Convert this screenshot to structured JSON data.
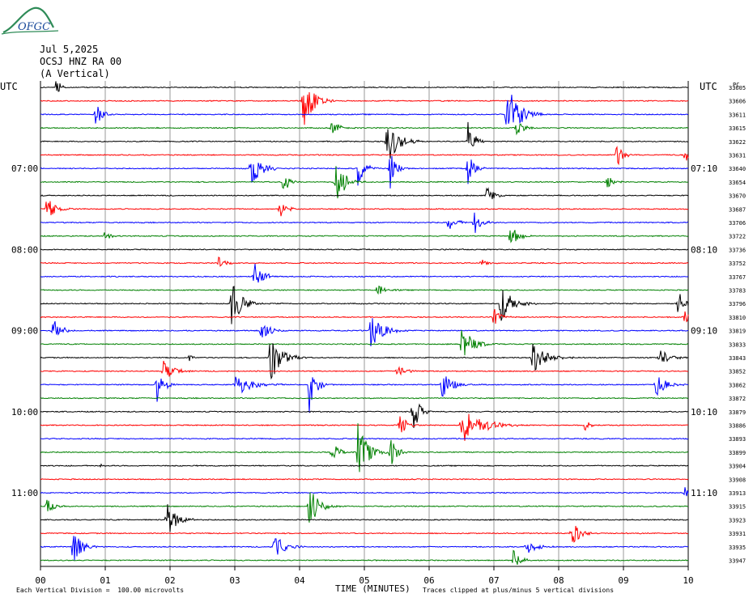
{
  "header": {
    "logo_text": "OFGC",
    "date": "Jul 5,2025",
    "station": "OCSJ HNZ RA 00",
    "component": "(A Vertical)",
    "utc_left": "UTC",
    "utc_right": "UTC",
    "right_header": "PC"
  },
  "footer": {
    "scale_note": "Each Vertical Division =  100.00 microvolts",
    "time_label": "TIME (MINUTES)",
    "clip_note": "Traces clipped at plus/minus 5 vertical divisions"
  },
  "chart_data": {
    "type": "line",
    "title": "Jul 5,2025",
    "subtitle": "OCSJ HNZ RA 00 (A Vertical)",
    "xlabel": "TIME (MINUTES)",
    "ylabel": "UTC",
    "xlim": [
      0,
      10
    ],
    "x_ticks": [
      "00",
      "01",
      "02",
      "03",
      "04",
      "05",
      "06",
      "07",
      "08",
      "09",
      "10"
    ],
    "grid": true,
    "trace_colors": [
      "#000000",
      "#ff0000",
      "#0000ff",
      "#008000"
    ],
    "left_hour_labels": [
      {
        "row": 6,
        "text": "07:00"
      },
      {
        "row": 12,
        "text": "08:00"
      },
      {
        "row": 18,
        "text": "09:00"
      },
      {
        "row": 24,
        "text": "10:00"
      },
      {
        "row": 30,
        "text": "11:00"
      }
    ],
    "right_hour_labels": [
      {
        "row": 6,
        "text": "07:10"
      },
      {
        "row": 12,
        "text": "08:10"
      },
      {
        "row": 18,
        "text": "09:10"
      },
      {
        "row": 24,
        "text": "10:10"
      },
      {
        "row": 30,
        "text": "11:10"
      }
    ],
    "right_row_labels": [
      "33605",
      "33606",
      "33611",
      "33615",
      "33622",
      "33631",
      "33640",
      "33654",
      "33670",
      "33687",
      "33706",
      "33722",
      "33736",
      "33752",
      "33767",
      "33783",
      "33796",
      "33810",
      "33819",
      "33833",
      "33843",
      "33852",
      "33862",
      "33872",
      "33879",
      "33886",
      "33893",
      "33899",
      "33904",
      "33908",
      "33913",
      "33915",
      "33923",
      "33931",
      "33935",
      "33947"
    ],
    "events": [
      {
        "row": 0,
        "t": 0.25,
        "amp": 0.9,
        "dur": 0.12
      },
      {
        "row": 1,
        "t": 4.05,
        "amp": 2.5,
        "dur": 0.3
      },
      {
        "row": 2,
        "t": 0.85,
        "amp": 1.0,
        "dur": 0.2
      },
      {
        "row": 2,
        "t": 7.2,
        "amp": 3.0,
        "dur": 0.35
      },
      {
        "row": 3,
        "t": 4.5,
        "amp": 0.7,
        "dur": 0.25
      },
      {
        "row": 3,
        "t": 7.35,
        "amp": 0.6,
        "dur": 0.25
      },
      {
        "row": 4,
        "t": 5.35,
        "amp": 2.0,
        "dur": 0.35
      },
      {
        "row": 4,
        "t": 6.6,
        "amp": 1.6,
        "dur": 0.2
      },
      {
        "row": 5,
        "t": 8.9,
        "amp": 1.0,
        "dur": 0.2
      },
      {
        "row": 5,
        "t": 9.95,
        "amp": 0.9,
        "dur": 0.1
      },
      {
        "row": 6,
        "t": 3.25,
        "amp": 1.8,
        "dur": 0.3
      },
      {
        "row": 6,
        "t": 4.9,
        "amp": 1.5,
        "dur": 0.2
      },
      {
        "row": 6,
        "t": 5.4,
        "amp": 1.7,
        "dur": 0.2
      },
      {
        "row": 6,
        "t": 6.6,
        "amp": 1.3,
        "dur": 0.2
      },
      {
        "row": 7,
        "t": 3.75,
        "amp": 0.9,
        "dur": 0.2
      },
      {
        "row": 7,
        "t": 4.55,
        "amp": 1.9,
        "dur": 0.3
      },
      {
        "row": 7,
        "t": 8.75,
        "amp": 0.6,
        "dur": 0.2
      },
      {
        "row": 8,
        "t": 6.9,
        "amp": 1.0,
        "dur": 0.2
      },
      {
        "row": 9,
        "t": 0.1,
        "amp": 1.1,
        "dur": 0.25
      },
      {
        "row": 9,
        "t": 3.7,
        "amp": 0.8,
        "dur": 0.2
      },
      {
        "row": 10,
        "t": 6.3,
        "amp": 0.9,
        "dur": 0.2
      },
      {
        "row": 10,
        "t": 6.7,
        "amp": 1.1,
        "dur": 0.2
      },
      {
        "row": 11,
        "t": 1.0,
        "amp": 0.6,
        "dur": 0.15
      },
      {
        "row": 11,
        "t": 7.25,
        "amp": 1.0,
        "dur": 0.25
      },
      {
        "row": 13,
        "t": 2.75,
        "amp": 0.5,
        "dur": 0.2
      },
      {
        "row": 13,
        "t": 6.8,
        "amp": 0.4,
        "dur": 0.2
      },
      {
        "row": 14,
        "t": 3.3,
        "amp": 1.3,
        "dur": 0.25
      },
      {
        "row": 15,
        "t": 5.2,
        "amp": 0.5,
        "dur": 0.25
      },
      {
        "row": 16,
        "t": 2.95,
        "amp": 2.0,
        "dur": 0.3
      },
      {
        "row": 16,
        "t": 7.1,
        "amp": 1.6,
        "dur": 0.35
      },
      {
        "row": 16,
        "t": 9.85,
        "amp": 1.3,
        "dur": 0.2
      },
      {
        "row": 17,
        "t": 7.0,
        "amp": 0.8,
        "dur": 0.2
      },
      {
        "row": 17,
        "t": 9.95,
        "amp": 0.9,
        "dur": 0.1
      },
      {
        "row": 18,
        "t": 0.2,
        "amp": 1.0,
        "dur": 0.25
      },
      {
        "row": 18,
        "t": 3.4,
        "amp": 0.9,
        "dur": 0.3
      },
      {
        "row": 18,
        "t": 5.1,
        "amp": 1.4,
        "dur": 0.4
      },
      {
        "row": 19,
        "t": 6.5,
        "amp": 1.5,
        "dur": 0.35
      },
      {
        "row": 20,
        "t": 2.3,
        "amp": 0.4,
        "dur": 0.1
      },
      {
        "row": 20,
        "t": 3.55,
        "amp": 2.0,
        "dur": 0.35
      },
      {
        "row": 20,
        "t": 7.6,
        "amp": 1.3,
        "dur": 0.4
      },
      {
        "row": 20,
        "t": 9.55,
        "amp": 0.8,
        "dur": 0.3
      },
      {
        "row": 21,
        "t": 1.9,
        "amp": 0.9,
        "dur": 0.3
      },
      {
        "row": 21,
        "t": 5.5,
        "amp": 0.5,
        "dur": 0.3
      },
      {
        "row": 22,
        "t": 1.8,
        "amp": 2.0,
        "dur": 0.2
      },
      {
        "row": 22,
        "t": 3.0,
        "amp": 1.0,
        "dur": 0.5
      },
      {
        "row": 22,
        "t": 4.15,
        "amp": 2.5,
        "dur": 0.2
      },
      {
        "row": 22,
        "t": 6.2,
        "amp": 1.2,
        "dur": 0.3
      },
      {
        "row": 22,
        "t": 9.5,
        "amp": 1.0,
        "dur": 0.3
      },
      {
        "row": 24,
        "t": 5.75,
        "amp": 1.8,
        "dur": 0.2
      },
      {
        "row": 25,
        "t": 5.55,
        "amp": 1.2,
        "dur": 0.2
      },
      {
        "row": 25,
        "t": 6.5,
        "amp": 1.6,
        "dur": 0.6
      },
      {
        "row": 25,
        "t": 8.4,
        "amp": 0.5,
        "dur": 0.2
      },
      {
        "row": 27,
        "t": 4.5,
        "amp": 1.0,
        "dur": 0.2
      },
      {
        "row": 27,
        "t": 4.9,
        "amp": 2.5,
        "dur": 0.3
      },
      {
        "row": 27,
        "t": 5.4,
        "amp": 1.4,
        "dur": 0.2
      },
      {
        "row": 28,
        "t": 0.95,
        "amp": 0.3,
        "dur": 0.05
      },
      {
        "row": 30,
        "t": 9.95,
        "amp": 0.5,
        "dur": 0.1
      },
      {
        "row": 31,
        "t": 0.1,
        "amp": 0.8,
        "dur": 0.2
      },
      {
        "row": 31,
        "t": 4.15,
        "amp": 1.8,
        "dur": 0.3
      },
      {
        "row": 32,
        "t": 1.95,
        "amp": 1.6,
        "dur": 0.3
      },
      {
        "row": 33,
        "t": 8.2,
        "amp": 1.2,
        "dur": 0.25
      },
      {
        "row": 34,
        "t": 0.5,
        "amp": 1.4,
        "dur": 0.3
      },
      {
        "row": 34,
        "t": 3.6,
        "amp": 1.2,
        "dur": 0.3
      },
      {
        "row": 34,
        "t": 7.5,
        "amp": 0.7,
        "dur": 0.3
      },
      {
        "row": 35,
        "t": 7.3,
        "amp": 0.9,
        "dur": 0.2
      }
    ]
  }
}
